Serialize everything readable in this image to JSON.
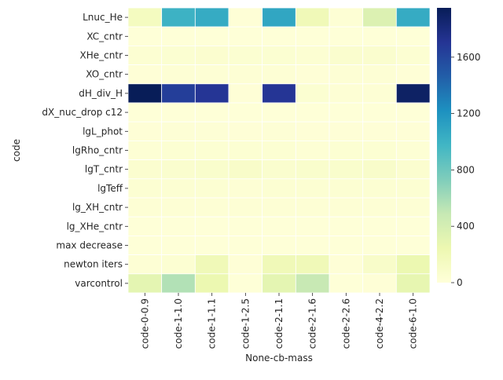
{
  "chart_data": {
    "type": "heatmap",
    "xlabel": "None-cb-mass",
    "ylabel": "code",
    "x_categories": [
      "code-0-0.9",
      "code-1-1.0",
      "code-1-1.1",
      "code-1-2.5",
      "code-2-1.1",
      "code-2-1.6",
      "code-2-2.6",
      "code-4-2.2",
      "code-6-1.0"
    ],
    "y_categories": [
      "Lnuc_He",
      "XC_cntr",
      "XHe_cntr",
      "XO_cntr",
      "dH_div_H",
      "dX_nuc_drop c12",
      "lgL_phot",
      "lgRho_cntr",
      "lgT_cntr",
      "lgTeff",
      "lg_XH_cntr",
      "lg_XHe_cntr",
      "max decrease",
      "newton iters",
      "varcontrol"
    ],
    "values": [
      [
        150,
        1000,
        1050,
        20,
        1080,
        200,
        30,
        350,
        1050
      ],
      [
        10,
        10,
        10,
        10,
        10,
        10,
        10,
        10,
        10
      ],
      [
        40,
        50,
        60,
        50,
        50,
        40,
        70,
        70,
        40
      ],
      [
        20,
        30,
        30,
        30,
        30,
        20,
        30,
        30,
        20
      ],
      [
        1950,
        1650,
        1700,
        20,
        1700,
        50,
        30,
        30,
        1900
      ],
      [
        10,
        10,
        10,
        10,
        10,
        10,
        10,
        10,
        10
      ],
      [
        20,
        25,
        25,
        20,
        25,
        20,
        20,
        20,
        20
      ],
      [
        30,
        40,
        40,
        40,
        40,
        30,
        40,
        40,
        30
      ],
      [
        60,
        70,
        80,
        100,
        70,
        80,
        80,
        90,
        60
      ],
      [
        40,
        40,
        40,
        30,
        40,
        40,
        40,
        40,
        40
      ],
      [
        30,
        30,
        30,
        30,
        30,
        30,
        30,
        30,
        30
      ],
      [
        10,
        15,
        15,
        10,
        15,
        10,
        10,
        10,
        10
      ],
      [
        10,
        10,
        10,
        10,
        10,
        10,
        10,
        10,
        10
      ],
      [
        30,
        40,
        200,
        20,
        200,
        200,
        20,
        100,
        250
      ],
      [
        300,
        560,
        250,
        10,
        300,
        480,
        10,
        20,
        280
      ]
    ],
    "colorbar": {
      "min": 0,
      "max": 1950,
      "ticks": [
        0,
        400,
        800,
        1200,
        1600
      ],
      "tick_labels": [
        "0",
        "400",
        "800",
        "1200",
        "1600"
      ],
      "colormap": "YlGnBu",
      "colors": [
        "#ffffd9",
        "#edf8b1",
        "#c7e9b4",
        "#7fcdbb",
        "#41b6c4",
        "#1d91c0",
        "#225ea8",
        "#253494",
        "#081d58"
      ]
    },
    "grid_line_color": "#ffffff",
    "legend": "colorbar-right"
  }
}
